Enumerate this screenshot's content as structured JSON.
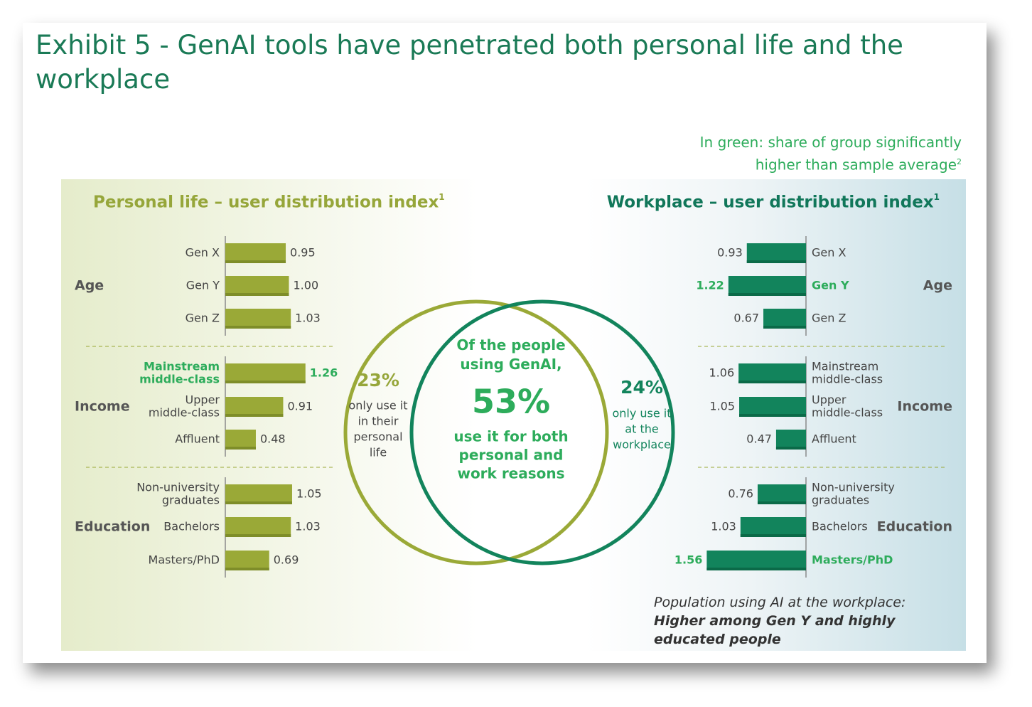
{
  "title": "Exhibit 5 - GenAI tools have penetrated both personal life and the workplace",
  "note": {
    "line1": "In green: share of group significantly",
    "line2": "higher than sample average",
    "sup": "2"
  },
  "summary": {
    "text": "Population using AI at the workplace: ",
    "bold": "Higher among Gen Y and highly educated people"
  },
  "colors": {
    "personal_bar": "#9aa937",
    "personal_bar_shadow": "#7e8d29",
    "work_bar": "#12845c",
    "work_bar_shadow": "#0b6a48",
    "highlight": "#2dac5b",
    "text": "#444444",
    "work_title": "#11775a",
    "personal_title": "#96a63a"
  },
  "chart_data": [
    {
      "type": "bar",
      "orientation": "horizontal",
      "title": "Personal life – user distribution index",
      "title_sup": "1",
      "groups": [
        {
          "name": "Age",
          "categories": [
            "Gen X",
            "Gen Y",
            "Gen Z"
          ],
          "values": [
            0.95,
            1.0,
            1.03
          ],
          "value_labels": [
            "0.95",
            "1.00",
            "1.03"
          ],
          "highlight": [
            false,
            false,
            false
          ]
        },
        {
          "name": "Income",
          "categories": [
            "Mainstream\nmiddle-class",
            "Upper\nmiddle-class",
            "Affluent"
          ],
          "values": [
            1.26,
            0.91,
            0.48
          ],
          "value_labels": [
            "1.26",
            "0.91",
            "0.48"
          ],
          "highlight": [
            true,
            false,
            false
          ]
        },
        {
          "name": "Education",
          "categories": [
            "Non-university\ngraduates",
            "Bachelors",
            "Masters/PhD"
          ],
          "values": [
            1.05,
            1.03,
            0.69
          ],
          "value_labels": [
            "1.05",
            "1.03",
            "0.69"
          ],
          "highlight": [
            false,
            false,
            false
          ]
        }
      ]
    },
    {
      "type": "bar",
      "orientation": "horizontal",
      "title": "Workplace – user distribution index",
      "title_sup": "1",
      "groups": [
        {
          "name": "Age",
          "categories": [
            "Gen X",
            "Gen Y",
            "Gen Z"
          ],
          "values": [
            0.93,
            1.22,
            0.67
          ],
          "value_labels": [
            "0.93",
            "1.22",
            "0.67"
          ],
          "highlight": [
            false,
            true,
            false
          ]
        },
        {
          "name": "Income",
          "categories": [
            "Mainstream\nmiddle-class",
            "Upper\nmiddle-class",
            "Affluent"
          ],
          "values": [
            1.06,
            1.05,
            0.47
          ],
          "value_labels": [
            "1.06",
            "1.05",
            "0.47"
          ],
          "highlight": [
            false,
            false,
            false
          ]
        },
        {
          "name": "Education",
          "categories": [
            "Non-university\ngraduates",
            "Bachelors",
            "Masters/PhD"
          ],
          "values": [
            0.76,
            1.03,
            1.56
          ],
          "value_labels": [
            "0.76",
            "1.03",
            "1.56"
          ],
          "highlight": [
            false,
            false,
            true
          ]
        }
      ]
    },
    {
      "type": "venn",
      "personal_only": {
        "value": 23,
        "label": "23%",
        "text": "only use it\nin their\npersonal\nlife"
      },
      "both": {
        "value": 53,
        "label": "53%",
        "text_top": "Of the people\nusing GenAI,",
        "text_bottom": "use it for both\npersonal and\nwork reasons"
      },
      "work_only": {
        "value": 24,
        "label": "24%",
        "text": "only use it\nat the\nworkplace"
      }
    }
  ]
}
